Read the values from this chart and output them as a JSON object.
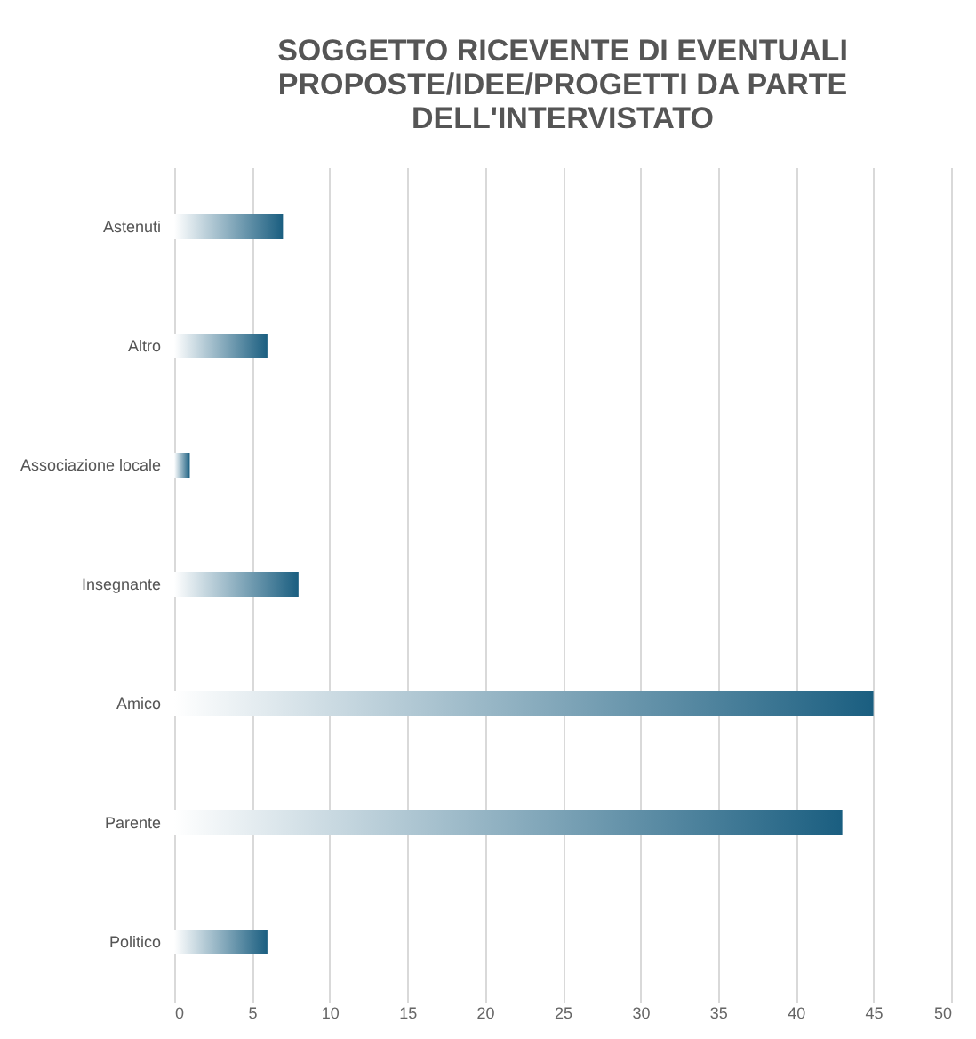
{
  "chart_data": {
    "type": "bar",
    "orientation": "horizontal",
    "title": "SOGGETTO RICEVENTE DI EVENTUALI\nPROPOSTE/IDEE/PROGETTI DA PARTE\nDELL'INTERVISTATO",
    "categories": [
      "Astenuti",
      "Altro",
      "Associazione locale",
      "Insegnante",
      "Amico",
      "Parente",
      "Politico"
    ],
    "values": [
      7,
      6,
      1,
      8,
      45,
      43,
      6
    ],
    "color": "#1a5e80",
    "xlim": [
      0,
      50
    ],
    "xticks": [
      0,
      5,
      10,
      15,
      20,
      25,
      30,
      35,
      40,
      45,
      50
    ],
    "grid": "x"
  }
}
